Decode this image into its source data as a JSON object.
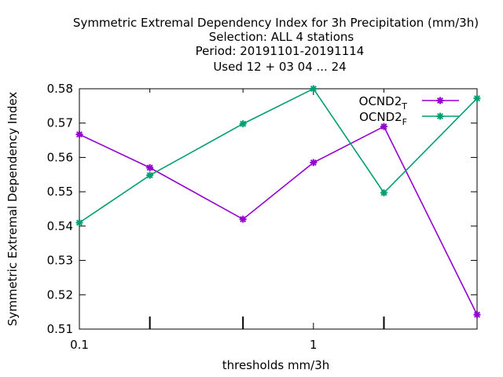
{
  "chart_data": {
    "type": "line",
    "title_lines": [
      "Symmetric Extremal Dependency Index  for 3h Precipitation (mm/3h)",
      "Selection: ALL      4 stations",
      "Period: 20191101-20191114",
      "Used  12 + 03 04 ... 24"
    ],
    "xlabel": "thresholds mm/3h",
    "ylabel": "Symmetric Extremal Dependency Index",
    "x_scale": "log",
    "xlim": [
      0.1,
      5
    ],
    "ylim": [
      0.51,
      0.58
    ],
    "x_ticks": [
      {
        "value": 0.1,
        "label": "0.1"
      },
      {
        "value": 1,
        "label": "1"
      }
    ],
    "x_minor_ticks": [
      0.2,
      0.5,
      2
    ],
    "y_ticks": [
      {
        "value": 0.51,
        "label": "0.51"
      },
      {
        "value": 0.52,
        "label": "0.52"
      },
      {
        "value": 0.53,
        "label": "0.53"
      },
      {
        "value": 0.54,
        "label": "0.54"
      },
      {
        "value": 0.55,
        "label": "0.55"
      },
      {
        "value": 0.56,
        "label": "0.56"
      },
      {
        "value": 0.57,
        "label": "0.57"
      },
      {
        "value": 0.58,
        "label": "0.58"
      }
    ],
    "grid": false,
    "legend_position": "top-right",
    "x": [
      0.1,
      0.2,
      0.5,
      1,
      2,
      5
    ],
    "series": [
      {
        "name": "OCND2",
        "subscript": "T",
        "color": "#9400d3",
        "values": [
          0.5667,
          0.557,
          0.542,
          0.5585,
          0.569,
          0.5142
        ]
      },
      {
        "name": "OCND2",
        "subscript": "F",
        "color": "#009e73",
        "values": [
          0.541,
          0.5548,
          0.5698,
          0.58,
          0.5497,
          0.5772
        ]
      }
    ]
  }
}
